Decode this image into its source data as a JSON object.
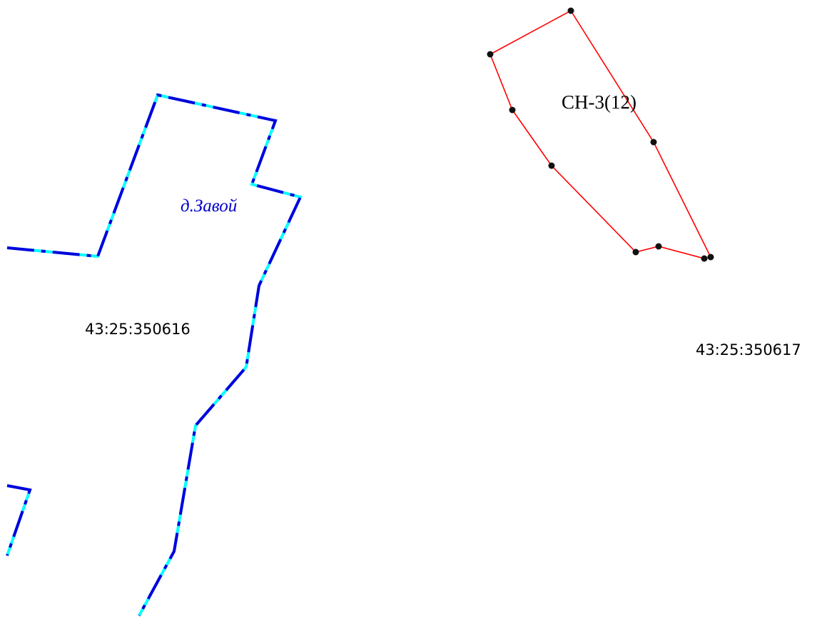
{
  "map": {
    "labels": {
      "village_name": "д.Завой",
      "cadastral_quarter_west": "43:25:350616",
      "cadastral_quarter_east": "43:25:350617",
      "zone_name": "СН-3(12)"
    },
    "colors": {
      "background": "#ffffff",
      "village_boundary_outer": "#00ffff",
      "village_boundary_dash": "#0000dd",
      "zone_outline": "#ff0000",
      "zone_vertex": "#111111",
      "village_label": "#0000cc",
      "cadastral_label": "#000000",
      "zone_label": "#000000"
    },
    "zone_vertex_count": 10
  }
}
